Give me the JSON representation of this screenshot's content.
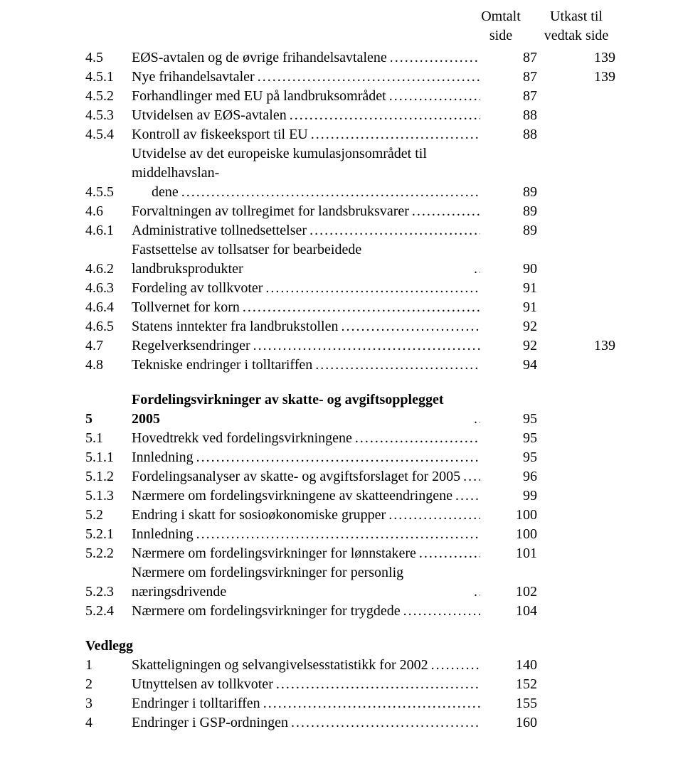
{
  "header": {
    "col1_line1": "Omtalt",
    "col1_line2": "side",
    "col2_line1": "Utkast til",
    "col2_line2": "vedtak side"
  },
  "sections": [
    {
      "rows": [
        {
          "num": "4.5",
          "title": "EØS-avtalen og de øvrige frihandelsavtalene",
          "p1": "87",
          "p2": "139",
          "bold": false
        },
        {
          "num": "4.5.1",
          "title": "Nye frihandelsavtaler",
          "p1": "87",
          "p2": "139",
          "bold": false
        },
        {
          "num": "4.5.2",
          "title": "Forhandlinger med EU på landbruksområdet",
          "p1": "87",
          "p2": "",
          "bold": false
        },
        {
          "num": "4.5.3",
          "title": "Utvidelsen av EØS-avtalen",
          "p1": "88",
          "p2": "",
          "bold": false
        },
        {
          "num": "4.5.4",
          "title": "Kontroll av fiskeeksport til EU",
          "p1": "88",
          "p2": "",
          "bold": false
        },
        {
          "num": "4.5.5",
          "title_line1": "Utvidelse av det europeiske kumulasjonsområdet til middelhavslan-",
          "title_line2": "dene",
          "p1": "89",
          "p2": "",
          "bold": false,
          "multiline": true
        },
        {
          "num": "4.6",
          "title": "Forvaltningen av tollregimet for landsbruksvarer",
          "p1": "89",
          "p2": "",
          "bold": false
        },
        {
          "num": "4.6.1",
          "title": "Administrative tollnedsettelser",
          "p1": "89",
          "p2": "",
          "bold": false
        },
        {
          "num": "4.6.2",
          "title": "Fastsettelse av tollsatser for bearbeidede landbruksprodukter",
          "p1": "90",
          "p2": "",
          "bold": false
        },
        {
          "num": "4.6.3",
          "title": "Fordeling av tollkvoter",
          "p1": "91",
          "p2": "",
          "bold": false
        },
        {
          "num": "4.6.4",
          "title": "Tollvernet for korn",
          "p1": "91",
          "p2": "",
          "bold": false
        },
        {
          "num": "4.6.5",
          "title": "Statens inntekter fra landbrukstollen",
          "p1": "92",
          "p2": "",
          "bold": false
        },
        {
          "num": "4.7",
          "title": "Regelverksendringer",
          "p1": "92",
          "p2": "139",
          "bold": false
        },
        {
          "num": "4.8",
          "title": "Tekniske endringer i tolltariffen",
          "p1": "94",
          "p2": "",
          "bold": false
        }
      ]
    },
    {
      "rows": [
        {
          "num": "5",
          "title": "Fordelingsvirkninger av skatte- og avgiftsopplegget 2005",
          "p1": "95",
          "p2": "",
          "bold": true
        },
        {
          "num": "5.1",
          "title": "Hovedtrekk ved fordelingsvirkningene",
          "p1": "95",
          "p2": "",
          "bold": false
        },
        {
          "num": "5.1.1",
          "title": "Innledning",
          "p1": "95",
          "p2": "",
          "bold": false
        },
        {
          "num": "5.1.2",
          "title": "Fordelingsanalyser av skatte- og avgiftsforslaget for 2005",
          "p1": "96",
          "p2": "",
          "bold": false
        },
        {
          "num": "5.1.3",
          "title": "Nærmere om fordelingsvirkningene av skatteendringene",
          "p1": "99",
          "p2": "",
          "bold": false
        },
        {
          "num": "5.2",
          "title": "Endring i skatt for sosioøkonomiske grupper",
          "p1": "100",
          "p2": "",
          "bold": false
        },
        {
          "num": "5.2.1",
          "title": "Innledning",
          "p1": "100",
          "p2": "",
          "bold": false
        },
        {
          "num": "5.2.2",
          "title": "Nærmere om fordelingsvirkninger for lønnstakere",
          "p1": "101",
          "p2": "",
          "bold": false
        },
        {
          "num": "5.2.3",
          "title": "Nærmere om fordelingsvirkninger for personlig næringsdrivende",
          "p1": "102",
          "p2": "",
          "bold": false
        },
        {
          "num": "5.2.4",
          "title": "Nærmere om fordelingsvirkninger for trygdede",
          "p1": "104",
          "p2": "",
          "bold": false
        }
      ]
    },
    {
      "heading": "Vedlegg",
      "rows": [
        {
          "num": "1",
          "title": "Skatteligningen og selvangivelsesstatistikk for 2002",
          "p1": "140",
          "p2": "",
          "bold": false
        },
        {
          "num": "2",
          "title": "Utnyttelsen av tollkvoter",
          "p1": "152",
          "p2": "",
          "bold": false
        },
        {
          "num": "3",
          "title": "Endringer i tolltariffen",
          "p1": "155",
          "p2": "",
          "bold": false
        },
        {
          "num": "4",
          "title": "Endringer i GSP-ordningen",
          "p1": "160",
          "p2": "",
          "bold": false
        }
      ]
    }
  ]
}
